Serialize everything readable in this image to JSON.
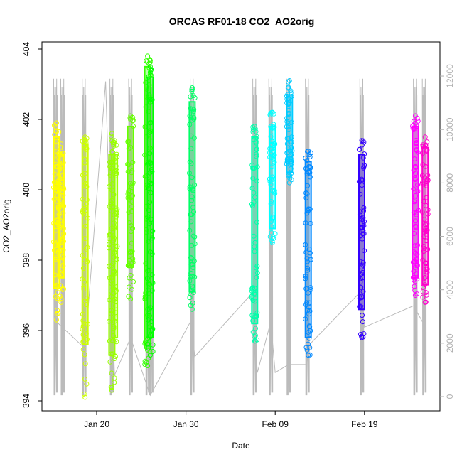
{
  "chart_data": {
    "type": "scatter",
    "title": "ORCAS RF01-18 CO2_AO2orig",
    "xlabel": "Date",
    "ylabel": "CO2_AO2orig",
    "x_ticks": [
      "Jan 20",
      "Jan 30",
      "Feb 09",
      "Feb 19"
    ],
    "y_left": {
      "range": [
        394,
        404
      ],
      "ticks": [
        "394",
        "396",
        "398",
        "400",
        "402",
        "404"
      ]
    },
    "y_right": {
      "range": [
        0,
        12000
      ],
      "ticks": [
        "0",
        "2000",
        "4000",
        "6000",
        "8000",
        "10000",
        "12000"
      ]
    },
    "grid": false,
    "flights": [
      {
        "day": 15.5,
        "min": 396.3,
        "max": 401.9,
        "core_lo": 397.2,
        "core_hi": 401.5,
        "color": "#ffff00"
      },
      {
        "day": 16.0,
        "min": 396.8,
        "max": 401.3,
        "core_lo": 397.5,
        "core_hi": 401.0,
        "color": "#ffff00"
      },
      {
        "day": 18.7,
        "min": 394.1,
        "max": 401.5,
        "core_lo": 395.6,
        "core_hi": 401.3,
        "color": "#ccff00"
      },
      {
        "day": 21.7,
        "min": 394.3,
        "max": 401.6,
        "core_lo": 395.3,
        "core_hi": 401.0,
        "color": "#99ff00"
      },
      {
        "day": 22.0,
        "min": 395.2,
        "max": 401.4,
        "core_lo": 395.8,
        "core_hi": 401.0,
        "color": "#99ff00"
      },
      {
        "day": 23.8,
        "min": 396.9,
        "max": 402.1,
        "core_lo": 397.8,
        "core_hi": 401.8,
        "color": "#66ff00"
      },
      {
        "day": 25.7,
        "min": 395.0,
        "max": 403.8,
        "core_lo": 395.5,
        "core_hi": 403.5,
        "color": "#33ff00"
      },
      {
        "day": 26.0,
        "min": 395.3,
        "max": 403.5,
        "core_lo": 395.8,
        "core_hi": 403.2,
        "color": "#00ff00"
      },
      {
        "day": 30.7,
        "min": 396.6,
        "max": 402.9,
        "core_lo": 397.1,
        "core_hi": 402.5,
        "color": "#00ff66"
      },
      {
        "day": 37.7,
        "min": 395.7,
        "max": 401.8,
        "core_lo": 396.2,
        "core_hi": 401.5,
        "color": "#00ffaa"
      },
      {
        "day": 39.7,
        "min": 398.5,
        "max": 402.2,
        "core_lo": 398.9,
        "core_hi": 401.8,
        "color": "#00ffff"
      },
      {
        "day": 41.6,
        "min": 400.2,
        "max": 403.1,
        "core_lo": 400.5,
        "core_hi": 402.7,
        "color": "#00ccff"
      },
      {
        "day": 43.7,
        "min": 395.3,
        "max": 401.1,
        "core_lo": 395.8,
        "core_hi": 400.8,
        "color": "#0088ff"
      },
      {
        "day": 49.7,
        "min": 395.8,
        "max": 401.4,
        "core_lo": 396.6,
        "core_hi": 401.0,
        "color": "#3300ff"
      },
      {
        "day": 55.7,
        "min": 397.0,
        "max": 402.1,
        "core_lo": 397.5,
        "core_hi": 401.8,
        "color": "#ff00ff"
      },
      {
        "day": 56.8,
        "min": 396.8,
        "max": 401.5,
        "core_lo": 397.3,
        "core_hi": 401.2,
        "color": "#ff00cc"
      }
    ],
    "altitude_trace": {
      "color": "#bbbbbb",
      "spike_days": [
        15.3,
        16.1,
        18.5,
        21.6,
        23.7,
        25.6,
        26.0,
        30.6,
        37.6,
        39.4,
        41.4,
        43.5,
        49.6,
        55.6,
        56.6
      ],
      "spike_max": 11900,
      "spike_min": 50,
      "baseline": [
        [
          15.5,
          2800
        ],
        [
          18.7,
          1800
        ],
        [
          21.0,
          11800
        ],
        [
          22.0,
          800
        ],
        [
          23.8,
          2200
        ],
        [
          26.0,
          50
        ],
        [
          30.5,
          2800
        ],
        [
          31.0,
          1500
        ],
        [
          37.5,
          3900
        ],
        [
          38.0,
          900
        ],
        [
          39.5,
          2800
        ],
        [
          40.0,
          900
        ],
        [
          41.5,
          1200
        ],
        [
          43.5,
          1200
        ],
        [
          44.0,
          2000
        ],
        [
          49.5,
          3900
        ],
        [
          50.0,
          2600
        ],
        [
          55.5,
          3400
        ],
        [
          56.5,
          2800
        ]
      ]
    }
  }
}
